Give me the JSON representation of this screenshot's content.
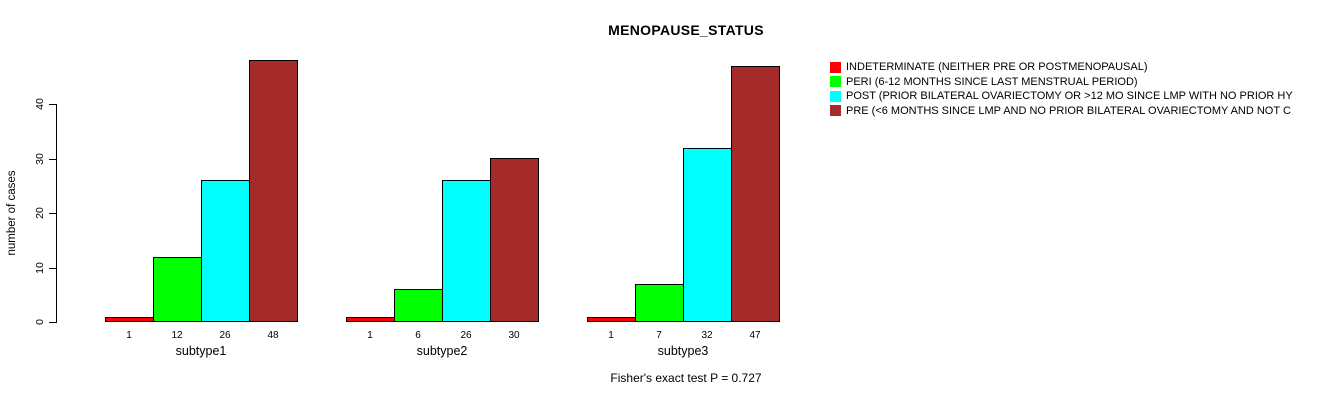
{
  "figure": {
    "title": "MENOPAUSE_STATUS",
    "footer_annotation": "Fisher's exact test P = 0.727",
    "background_color": "#ffffff"
  },
  "chart_data": {
    "type": "bar",
    "title": "MENOPAUSE_STATUS",
    "xlabel": "",
    "ylabel": "number of cases",
    "ylim": [
      0,
      50
    ],
    "yticks": [
      0,
      10,
      20,
      30,
      40
    ],
    "grid": false,
    "legend_position": "right",
    "bar_value_labels_shown": true,
    "categories": [
      "subtype1",
      "subtype2",
      "subtype3"
    ],
    "series": [
      {
        "name": "INDETERMINATE (NEITHER PRE OR POSTMENOPAUSAL)",
        "color": "#FF0000",
        "values": [
          1,
          1,
          1
        ]
      },
      {
        "name": "PERI (6-12 MONTHS SINCE LAST MENSTRUAL PERIOD)",
        "color": "#00FF00",
        "values": [
          12,
          6,
          7
        ]
      },
      {
        "name": "POST (PRIOR BILATERAL OVARIECTOMY OR >12 MO SINCE LMP WITH NO PRIOR HY",
        "color": "#00FFFF",
        "values": [
          26,
          26,
          32
        ]
      },
      {
        "name": "PRE (<6 MONTHS SINCE LMP AND NO PRIOR BILATERAL OVARIECTOMY AND NOT C",
        "color": "#A52A2A",
        "values": [
          48,
          30,
          47
        ]
      }
    ],
    "annotation": "Fisher's exact test P = 0.727"
  }
}
